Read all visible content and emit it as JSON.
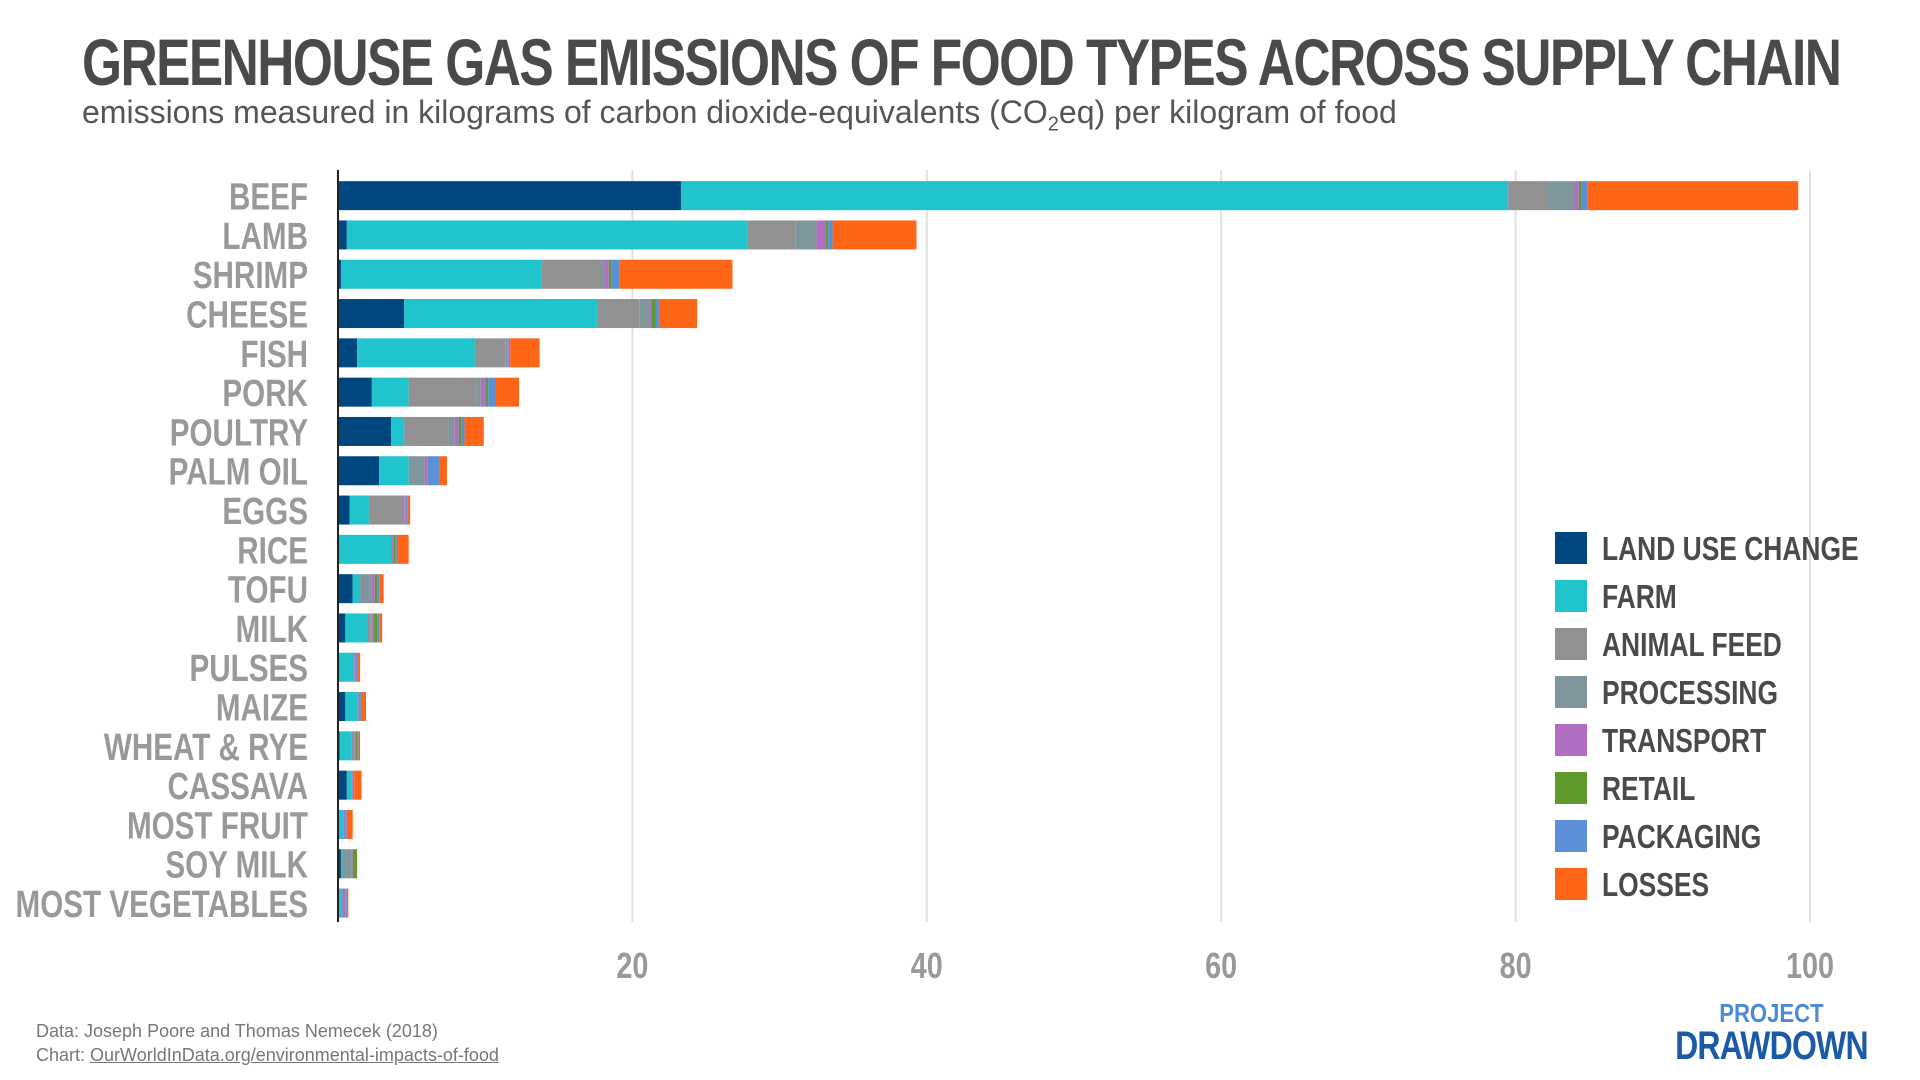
{
  "title": "GREENHOUSE GAS EMISSIONS OF FOOD TYPES ACROSS SUPPLY CHAIN",
  "subtitle_pre": "emissions measured in kilograms of carbon dioxide-equivalents (CO",
  "subtitle_sub": "2",
  "subtitle_post": "eq) per kilogram of food",
  "footer": {
    "source": "Data: Joseph Poore and Thomas Nemecek (2018)",
    "chart_prefix": "Chart: ",
    "chart_link": "OurWorldInData.org/environmental-impacts-of-food"
  },
  "logo": {
    "line1": "PROJECT",
    "line2": "DRAWDOWN"
  },
  "chart_data": {
    "type": "bar",
    "orientation": "horizontal",
    "stacked": true,
    "xlim": [
      0,
      100
    ],
    "xticks": [
      20,
      40,
      60,
      80,
      100
    ],
    "grid": true,
    "legend_position": "right",
    "categories": [
      "BEEF",
      "LAMB",
      "SHRIMP",
      "CHEESE",
      "FISH",
      "PORK",
      "POULTRY",
      "PALM OIL",
      "EGGS",
      "RICE",
      "TOFU",
      "MILK",
      "PULSES",
      "MAIZE",
      "WHEAT & RYE",
      "CASSAVA",
      "MOST FRUIT",
      "SOY MILK",
      "MOST VEGETABLES"
    ],
    "series": [
      {
        "name": "LAND USE CHANGE",
        "color": "#00467f",
        "values": [
          23.3,
          0.6,
          0.2,
          4.5,
          1.3,
          2.3,
          3.6,
          2.8,
          0.8,
          0.0,
          1.0,
          0.5,
          0.0,
          0.5,
          0.1,
          0.6,
          0.0,
          0.2,
          0.0
        ]
      },
      {
        "name": "FARM",
        "color": "#1fc4cc",
        "values": [
          56.2,
          27.2,
          13.6,
          13.1,
          8.0,
          2.5,
          0.9,
          2.0,
          1.3,
          3.6,
          0.5,
          1.5,
          1.1,
          0.8,
          0.8,
          0.3,
          0.4,
          0.1,
          0.3
        ]
      },
      {
        "name": "ANIMAL FEED",
        "color": "#919191",
        "values": [
          2.7,
          3.3,
          4.1,
          2.9,
          2.1,
          4.6,
          3.0,
          0.0,
          2.4,
          0.0,
          0.0,
          0.2,
          0.0,
          0.0,
          0.0,
          0.0,
          0.0,
          0.0,
          0.0
        ]
      },
      {
        "name": "PROCESSING",
        "color": "#7f969c",
        "values": [
          1.8,
          1.4,
          0.2,
          0.7,
          0.1,
          0.3,
          0.4,
          1.1,
          0.0,
          0.1,
          0.8,
          0.1,
          0.0,
          0.1,
          0.2,
          0.0,
          0.0,
          0.6,
          0.0
        ]
      },
      {
        "name": "TRANSPORT",
        "color": "#b06fc3",
        "values": [
          0.3,
          0.6,
          0.3,
          0.1,
          0.1,
          0.3,
          0.3,
          0.2,
          0.1,
          0.1,
          0.2,
          0.1,
          0.1,
          0.1,
          0.1,
          0.1,
          0.1,
          0.1,
          0.2
        ]
      },
      {
        "name": "RETAIL",
        "color": "#5e9a2c",
        "values": [
          0.2,
          0.2,
          0.2,
          0.3,
          0.0,
          0.2,
          0.2,
          0.0,
          0.0,
          0.1,
          0.2,
          0.3,
          0.0,
          0.0,
          0.1,
          0.0,
          0.0,
          0.3,
          0.0
        ]
      },
      {
        "name": "PACKAGING",
        "color": "#5b8fd6",
        "values": [
          0.4,
          0.3,
          0.5,
          0.2,
          0.1,
          0.5,
          0.2,
          0.8,
          0.1,
          0.1,
          0.1,
          0.1,
          0.1,
          0.1,
          0.1,
          0.1,
          0.1,
          0.0,
          0.1
        ]
      },
      {
        "name": "LOSSES",
        "color": "#ff6517",
        "values": [
          14.3,
          5.7,
          7.7,
          2.6,
          2.0,
          1.6,
          1.3,
          0.5,
          0.2,
          0.8,
          0.3,
          0.2,
          0.2,
          0.3,
          0.1,
          0.5,
          0.4,
          0.0,
          0.1
        ]
      }
    ]
  }
}
